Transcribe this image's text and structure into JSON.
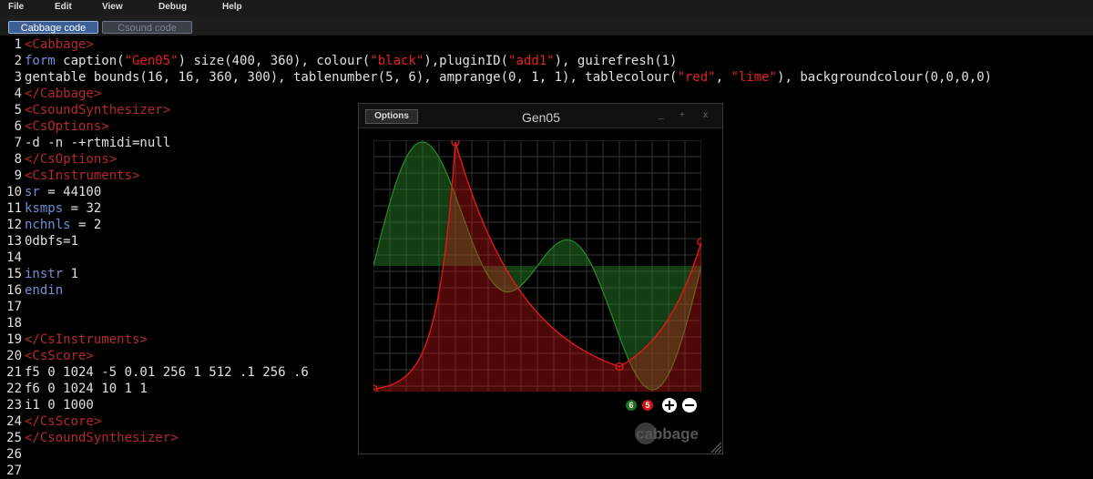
{
  "menu": {
    "file": "File",
    "edit": "Edit",
    "view": "View",
    "debug": "Debug",
    "help": "Help"
  },
  "tabs": {
    "cabbage": "Cabbage code",
    "csound": "Csound code"
  },
  "code": [
    {
      "n": "1",
      "t": "<Cabbage>"
    },
    {
      "n": "2",
      "t": "form caption(\"Gen05\") size(400, 360), colour(\"black\"),pluginID(\"add1\"), guirefresh(1)"
    },
    {
      "n": "3",
      "t": "gentable bounds(16, 16, 360, 300), tablenumber(5, 6), amprange(0, 1, 1), tablecolour(\"red\", \"lime\"), backgroundcolour(0,0,0,0)"
    },
    {
      "n": "4",
      "t": "</Cabbage>"
    },
    {
      "n": "5",
      "t": "<CsoundSynthesizer>"
    },
    {
      "n": "6",
      "t": "<CsOptions>"
    },
    {
      "n": "7",
      "t": "-d -n -+rtmidi=null"
    },
    {
      "n": "8",
      "t": "</CsOptions>"
    },
    {
      "n": "9",
      "t": "<CsInstruments>"
    },
    {
      "n": "10",
      "t": "sr = 44100"
    },
    {
      "n": "11",
      "t": "ksmps = 32"
    },
    {
      "n": "12",
      "t": "nchnls = 2"
    },
    {
      "n": "13",
      "t": "0dbfs=1"
    },
    {
      "n": "14",
      "t": ""
    },
    {
      "n": "15",
      "t": "instr 1"
    },
    {
      "n": "16",
      "t": "endin"
    },
    {
      "n": "17",
      "t": ""
    },
    {
      "n": "18",
      "t": ""
    },
    {
      "n": "19",
      "t": "</CsInstruments>"
    },
    {
      "n": "20",
      "t": "<CsScore>"
    },
    {
      "n": "21",
      "t": "f5 0 1024 -5 0.01 256 1 512 .1 256 .6"
    },
    {
      "n": "22",
      "t": "f6 0 1024 10 1 1"
    },
    {
      "n": "23",
      "t": "i1 0 1000"
    },
    {
      "n": "24",
      "t": "</CsScore>"
    },
    {
      "n": "25",
      "t": "</CsoundSynthesizer>"
    },
    {
      "n": "26",
      "t": ""
    },
    {
      "n": "27",
      "t": ""
    }
  ],
  "plugin": {
    "title": "Gen05",
    "options_label": "Options",
    "minimize": "_",
    "maximize": "+",
    "close": "x",
    "table_badges": [
      "6",
      "5"
    ],
    "brand": "cabbage"
  },
  "colors": {
    "table5": "#e01818",
    "table6": "#2a8a2a",
    "accent": "#3c5f96"
  }
}
